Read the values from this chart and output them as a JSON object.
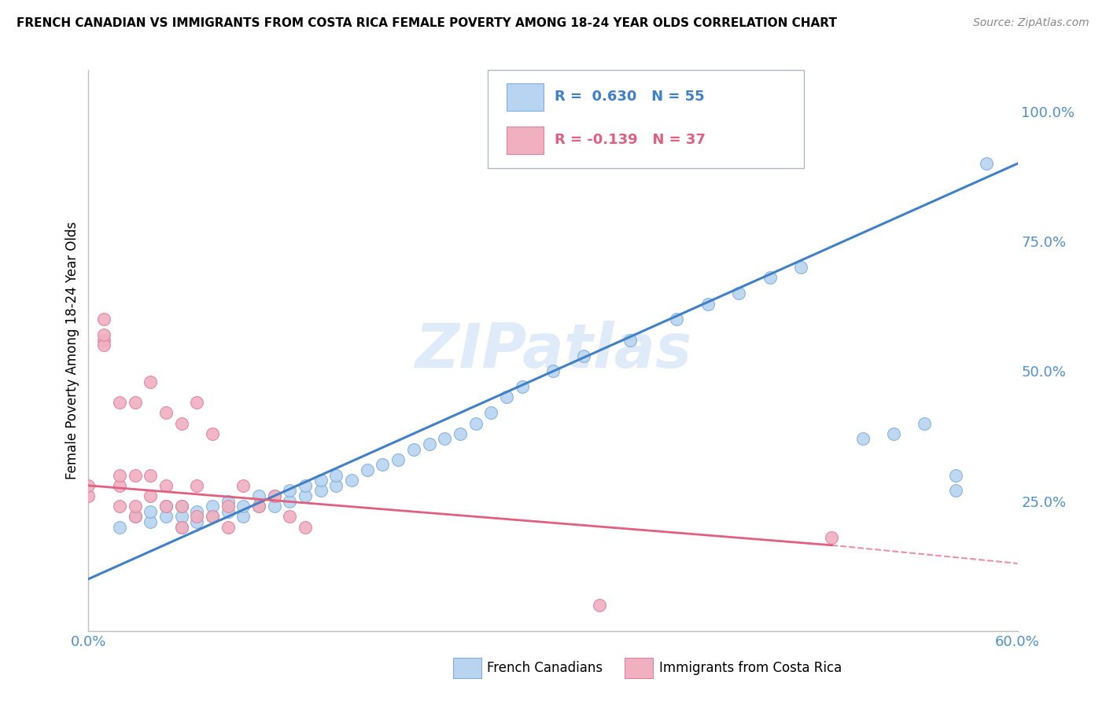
{
  "title": "FRENCH CANADIAN VS IMMIGRANTS FROM COSTA RICA FEMALE POVERTY AMONG 18-24 YEAR OLDS CORRELATION CHART",
  "source": "Source: ZipAtlas.com",
  "ylabel": "Female Poverty Among 18-24 Year Olds",
  "ylabel_right_ticks": [
    "100.0%",
    "75.0%",
    "50.0%",
    "25.0%"
  ],
  "ylabel_right_vals": [
    1.0,
    0.75,
    0.5,
    0.25
  ],
  "legend_blue_r": "R =  0.630",
  "legend_blue_n": "N = 55",
  "legend_pink_r": "R = -0.139",
  "legend_pink_n": "N = 37",
  "legend_label_blue": "French Canadians",
  "legend_label_pink": "Immigrants from Costa Rica",
  "watermark": "ZIPatlas",
  "blue_color": "#b8d4f0",
  "blue_edge": "#80aede",
  "pink_color": "#f0b0c0",
  "pink_edge": "#e080a0",
  "blue_line_color": "#4080c8",
  "pink_line_color": "#e06080",
  "blue_scatter_x": [
    0.02,
    0.03,
    0.04,
    0.04,
    0.05,
    0.05,
    0.06,
    0.06,
    0.06,
    0.07,
    0.07,
    0.08,
    0.08,
    0.09,
    0.09,
    0.1,
    0.1,
    0.11,
    0.11,
    0.12,
    0.12,
    0.13,
    0.13,
    0.14,
    0.14,
    0.15,
    0.15,
    0.16,
    0.16,
    0.17,
    0.18,
    0.19,
    0.2,
    0.21,
    0.22,
    0.23,
    0.24,
    0.25,
    0.26,
    0.27,
    0.28,
    0.3,
    0.32,
    0.35,
    0.38,
    0.4,
    0.42,
    0.44,
    0.46,
    0.5,
    0.52,
    0.54,
    0.56,
    0.56,
    0.58
  ],
  "blue_scatter_y": [
    0.2,
    0.22,
    0.21,
    0.23,
    0.22,
    0.24,
    0.2,
    0.22,
    0.24,
    0.21,
    0.23,
    0.22,
    0.24,
    0.23,
    0.25,
    0.22,
    0.24,
    0.24,
    0.26,
    0.24,
    0.26,
    0.25,
    0.27,
    0.26,
    0.28,
    0.27,
    0.29,
    0.28,
    0.3,
    0.29,
    0.31,
    0.32,
    0.33,
    0.35,
    0.36,
    0.37,
    0.38,
    0.4,
    0.42,
    0.45,
    0.47,
    0.5,
    0.53,
    0.56,
    0.6,
    0.63,
    0.65,
    0.68,
    0.7,
    0.37,
    0.38,
    0.4,
    0.27,
    0.3,
    0.9
  ],
  "pink_scatter_x": [
    0.0,
    0.0,
    0.01,
    0.01,
    0.01,
    0.01,
    0.02,
    0.02,
    0.02,
    0.02,
    0.03,
    0.03,
    0.03,
    0.03,
    0.04,
    0.04,
    0.04,
    0.05,
    0.05,
    0.05,
    0.06,
    0.06,
    0.06,
    0.07,
    0.07,
    0.07,
    0.08,
    0.08,
    0.09,
    0.09,
    0.1,
    0.11,
    0.12,
    0.13,
    0.14,
    0.33,
    0.48
  ],
  "pink_scatter_y": [
    0.26,
    0.28,
    0.56,
    0.6,
    0.55,
    0.57,
    0.24,
    0.28,
    0.3,
    0.44,
    0.22,
    0.24,
    0.3,
    0.44,
    0.26,
    0.3,
    0.48,
    0.24,
    0.28,
    0.42,
    0.2,
    0.24,
    0.4,
    0.22,
    0.28,
    0.44,
    0.22,
    0.38,
    0.2,
    0.24,
    0.28,
    0.24,
    0.26,
    0.22,
    0.2,
    0.05,
    0.18
  ],
  "xmin": 0.0,
  "xmax": 0.6,
  "ymin": 0.0,
  "ymax": 1.08,
  "blue_line_x": [
    0.0,
    0.6
  ],
  "blue_line_y": [
    0.1,
    0.9
  ],
  "pink_line_x": [
    0.0,
    0.6
  ],
  "pink_line_y": [
    0.28,
    0.13
  ]
}
